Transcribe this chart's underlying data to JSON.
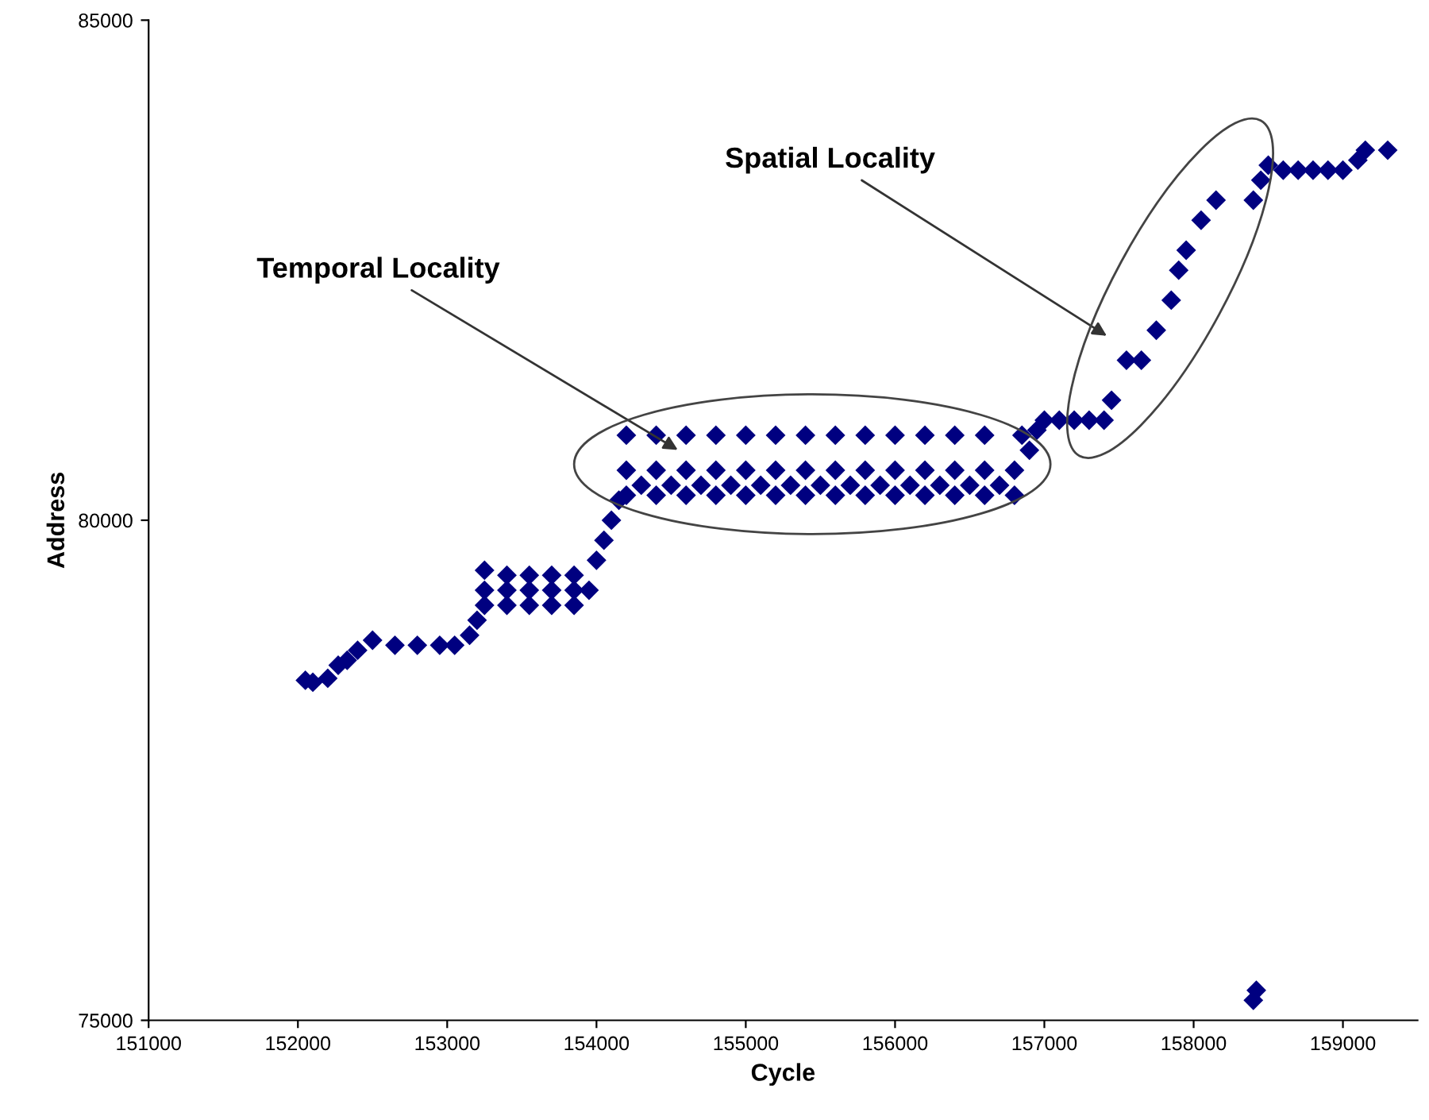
{
  "chart_data": {
    "type": "scatter",
    "xlabel": "Cycle",
    "ylabel": "Address",
    "xlim": [
      151000,
      159500
    ],
    "ylim": [
      75000,
      85000
    ],
    "xticks": [
      151000,
      152000,
      153000,
      154000,
      155000,
      156000,
      157000,
      158000,
      159000
    ],
    "yticks": [
      75000,
      80000,
      85000
    ],
    "grid": false,
    "legend": false,
    "marker": "diamond",
    "annotations": [
      "Temporal Locality",
      "Spatial Locality"
    ],
    "series": [
      {
        "color": "#000080",
        "x": [
          152050,
          152100,
          152200,
          152270,
          152330,
          152400,
          152500,
          152650,
          152800,
          152950,
          153050,
          153150,
          153200,
          153250,
          153250,
          153250,
          153400,
          153400,
          153400,
          153550,
          153550,
          153550,
          153700,
          153700,
          153700,
          153850,
          153850,
          153850,
          153950,
          154000,
          154050,
          154100,
          154150,
          154200,
          154200,
          154200,
          154300,
          154400,
          154400,
          154400,
          154500,
          154600,
          154600,
          154600,
          154700,
          154800,
          154800,
          154800,
          154900,
          155000,
          155000,
          155000,
          155100,
          155200,
          155200,
          155200,
          155300,
          155400,
          155400,
          155400,
          155500,
          155600,
          155600,
          155600,
          155700,
          155800,
          155800,
          155800,
          155900,
          156000,
          156000,
          156000,
          156100,
          156200,
          156200,
          156200,
          156300,
          156400,
          156400,
          156400,
          156500,
          156600,
          156600,
          156600,
          156700,
          156800,
          156800,
          156850,
          156900,
          156950,
          157000,
          157100,
          157200,
          157300,
          157400,
          157450,
          157550,
          157650,
          157750,
          157850,
          157900,
          157950,
          158050,
          158150,
          158400,
          158450,
          158500,
          158600,
          158700,
          158800,
          158900,
          159000,
          159100,
          159150,
          159300,
          158400,
          158420
        ],
        "values": [
          78400,
          78380,
          78420,
          78550,
          78600,
          78700,
          78800,
          78750,
          78750,
          78750,
          78750,
          78850,
          79000,
          79150,
          79300,
          79500,
          79150,
          79300,
          79450,
          79150,
          79300,
          79450,
          79150,
          79300,
          79450,
          79150,
          79300,
          79450,
          79300,
          79600,
          79800,
          80000,
          80200,
          80250,
          80500,
          80850,
          80350,
          80250,
          80500,
          80850,
          80350,
          80250,
          80500,
          80850,
          80350,
          80250,
          80500,
          80850,
          80350,
          80250,
          80500,
          80850,
          80350,
          80250,
          80500,
          80850,
          80350,
          80250,
          80500,
          80850,
          80350,
          80250,
          80500,
          80850,
          80350,
          80250,
          80500,
          80850,
          80350,
          80250,
          80500,
          80850,
          80350,
          80250,
          80500,
          80850,
          80350,
          80250,
          80500,
          80850,
          80350,
          80250,
          80500,
          80850,
          80350,
          80250,
          80500,
          80850,
          80700,
          80900,
          81000,
          81000,
          81000,
          81000,
          81000,
          81200,
          81600,
          81600,
          81900,
          82200,
          82500,
          82700,
          83000,
          83200,
          83200,
          83400,
          83550,
          83500,
          83500,
          83500,
          83500,
          83500,
          83600,
          83700,
          83700,
          75200,
          75300
        ]
      }
    ]
  }
}
